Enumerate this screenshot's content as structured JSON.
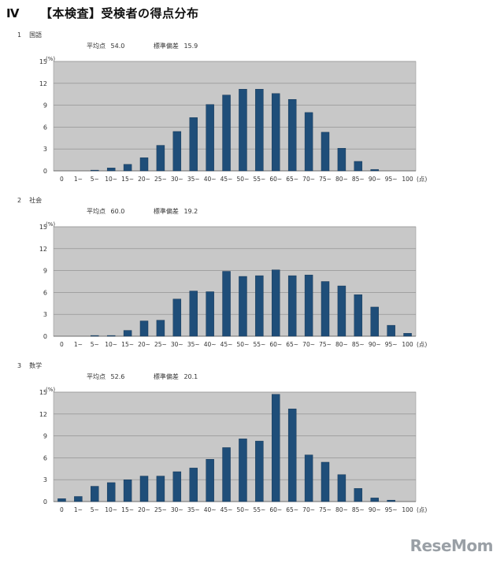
{
  "page": {
    "roman": "Ⅳ",
    "title": "【本検査】受検者の得点分布",
    "watermark": "ReseMom"
  },
  "charts_meta": [
    {
      "num": "1",
      "subject": "国語",
      "mean_label": "平均点",
      "mean": "54.0",
      "sd_label": "標準偏差",
      "sd": "15.9"
    },
    {
      "num": "2",
      "subject": "社会",
      "mean_label": "平均点",
      "mean": "60.0",
      "sd_label": "標準偏差",
      "sd": "19.2"
    },
    {
      "num": "3",
      "subject": "数学",
      "mean_label": "平均点",
      "mean": "52.6",
      "sd_label": "標準偏差",
      "sd": "20.1"
    }
  ],
  "chart_data": [
    {
      "type": "bar",
      "title": "国語",
      "ylabel": "(%)",
      "xlabel": "(点)",
      "ylim": [
        0,
        15
      ],
      "yticks": [
        0,
        3,
        6,
        9,
        12,
        15
      ],
      "grid": true,
      "bar_color": "#1f4e79",
      "categories": [
        "0",
        "1~",
        "5~",
        "10~",
        "15~",
        "20~",
        "25~",
        "30~",
        "35~",
        "40~",
        "45~",
        "50~",
        "55~",
        "60~",
        "65~",
        "70~",
        "75~",
        "80~",
        "85~",
        "90~",
        "95~",
        "100"
      ],
      "values": [
        0,
        0,
        0.1,
        0.4,
        0.9,
        1.8,
        3.5,
        5.4,
        7.3,
        9.1,
        10.4,
        11.2,
        11.2,
        10.6,
        9.8,
        8.0,
        5.3,
        3.1,
        1.3,
        0.2,
        0,
        0
      ]
    },
    {
      "type": "bar",
      "title": "社会",
      "ylabel": "(%)",
      "xlabel": "(点)",
      "ylim": [
        0,
        15
      ],
      "yticks": [
        0,
        3,
        6,
        9,
        12,
        15
      ],
      "grid": true,
      "bar_color": "#1f4e79",
      "categories": [
        "0",
        "1~",
        "5~",
        "10~",
        "15~",
        "20~",
        "25~",
        "30~",
        "35~",
        "40~",
        "45~",
        "50~",
        "55~",
        "60~",
        "65~",
        "70~",
        "75~",
        "80~",
        "85~",
        "90~",
        "95~",
        "100"
      ],
      "values": [
        0,
        0,
        0.1,
        0.1,
        0.8,
        2.1,
        2.2,
        5.1,
        6.2,
        6.1,
        8.9,
        8.2,
        8.3,
        9.1,
        8.3,
        8.4,
        7.5,
        6.9,
        5.7,
        4.0,
        1.5,
        0.4
      ]
    },
    {
      "type": "bar",
      "title": "数学",
      "ylabel": "(%)",
      "xlabel": "(点)",
      "ylim": [
        0,
        15
      ],
      "yticks": [
        0,
        3,
        6,
        9,
        12,
        15
      ],
      "grid": true,
      "bar_color": "#1f4e79",
      "categories": [
        "0",
        "1~",
        "5~",
        "10~",
        "15~",
        "20~",
        "25~",
        "30~",
        "35~",
        "40~",
        "45~",
        "50~",
        "55~",
        "60~",
        "65~",
        "70~",
        "75~",
        "80~",
        "85~",
        "90~",
        "95~",
        "100"
      ],
      "values": [
        0.4,
        0.7,
        2.1,
        2.6,
        3.0,
        3.5,
        3.5,
        4.1,
        4.6,
        5.8,
        7.4,
        8.6,
        8.3,
        14.7,
        12.7,
        6.4,
        5.4,
        3.7,
        1.8,
        0.5,
        0.2,
        0
      ]
    }
  ]
}
